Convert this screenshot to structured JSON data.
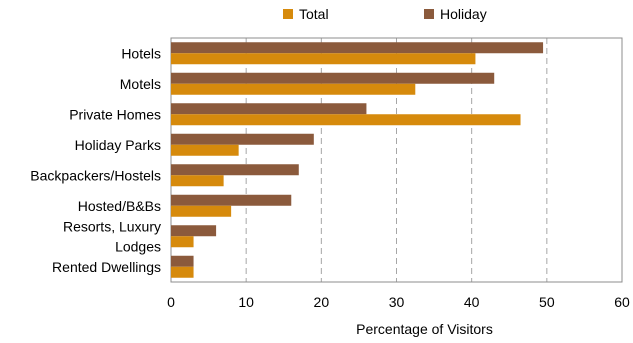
{
  "chart_data": {
    "type": "bar",
    "orientation": "horizontal",
    "categories": [
      "Hotels",
      "Motels",
      "Private Homes",
      "Holiday Parks",
      "Backpackers/Hostels",
      "Hosted/B&Bs",
      "Resorts, Luxury Lodges",
      "Rented Dwellings"
    ],
    "category_lines": [
      [
        "Hotels"
      ],
      [
        "Motels"
      ],
      [
        "Private Homes"
      ],
      [
        "Holiday Parks"
      ],
      [
        "Backpackers/Hostels"
      ],
      [
        "Hosted/B&Bs"
      ],
      [
        "Resorts, Luxury",
        "Lodges"
      ],
      [
        "Rented Dwellings"
      ]
    ],
    "series": [
      {
        "name": "Holiday",
        "color": "#8B5A3C",
        "values": [
          49.5,
          43,
          26,
          19,
          17,
          16,
          6,
          3
        ]
      },
      {
        "name": "Total",
        "color": "#D68A0C",
        "values": [
          40.5,
          32.5,
          46.5,
          9,
          7,
          8,
          3,
          3
        ]
      }
    ],
    "xlabel": "Percentage of Visitors",
    "xlim": [
      0,
      60
    ],
    "xticks": [
      0,
      10,
      20,
      30,
      40,
      50,
      60
    ],
    "grid": "vertical dashed",
    "legend_position": "top"
  },
  "legend": {
    "total_label": "Total",
    "holiday_label": "Holiday"
  }
}
